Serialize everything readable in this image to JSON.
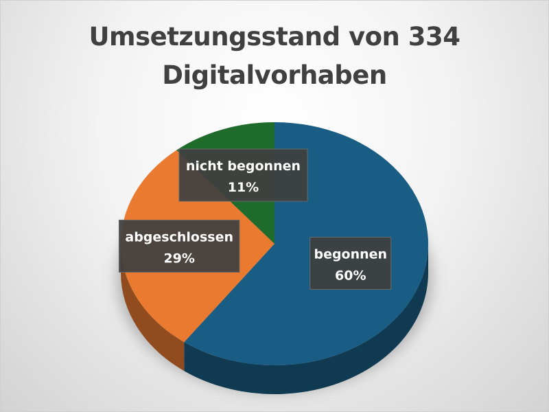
{
  "chart_data": {
    "type": "pie",
    "title_lines": [
      "Umsetzungsstand von 334",
      "Digitalvorhaben"
    ],
    "categories": [
      "begonnen",
      "abgeschlossen",
      "nicht begonnen"
    ],
    "values": [
      60,
      29,
      11
    ],
    "value_labels": [
      "60%",
      "29%",
      "11%"
    ],
    "colors": [
      "#1a5d84",
      "#e97a30",
      "#1f6b2c"
    ],
    "legend": "none",
    "data_labels": "category-and-percent",
    "style": "3d"
  }
}
